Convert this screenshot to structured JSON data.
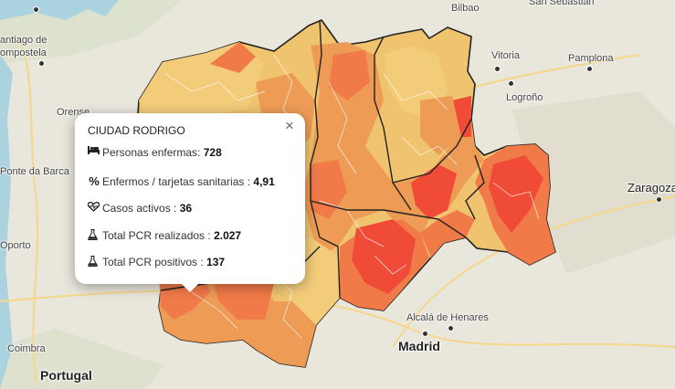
{
  "popup": {
    "title": "CIUDAD RODRIGO",
    "close_symbol": "×",
    "rows": [
      {
        "icon": "bed-icon",
        "label": "Personas enfermas: ",
        "value": "728"
      },
      {
        "icon": "percent-icon",
        "label": "Enfermos / tarjetas sanitarias : ",
        "value": "4,91"
      },
      {
        "icon": "heartbeat-icon",
        "label": "Casos activos : ",
        "value": "36"
      },
      {
        "icon": "flask-icon",
        "label": "Total PCR realizados : ",
        "value": "2.027"
      },
      {
        "icon": "flask-icon",
        "label": "Total PCR positivos : ",
        "value": "137"
      }
    ]
  },
  "places": {
    "bilbao": "Bilbao",
    "san_sebastian": "San Sebastián",
    "santiago_1": "antiago de",
    "santiago_2": "ompostela",
    "orense": "Orense",
    "vitoria": "Vitoria",
    "pamplona": "Pamplona",
    "logrono": "Logroño",
    "ponte_da_barca": "Ponte da Barca",
    "zaragoza": "Zaragoza",
    "porto": "Oporto",
    "alcala": "Alcalá de Henares",
    "madrid": "Madrid",
    "coimbra": "Coimbra",
    "portugal": "Portugal"
  },
  "colors": {
    "map_bg": "#e9e6dc",
    "region_light": "#f0c36e",
    "region_mid": "#ee9c55",
    "region_dark": "#f07a48",
    "region_red": "#ef4b36",
    "boundary": "#222222"
  }
}
